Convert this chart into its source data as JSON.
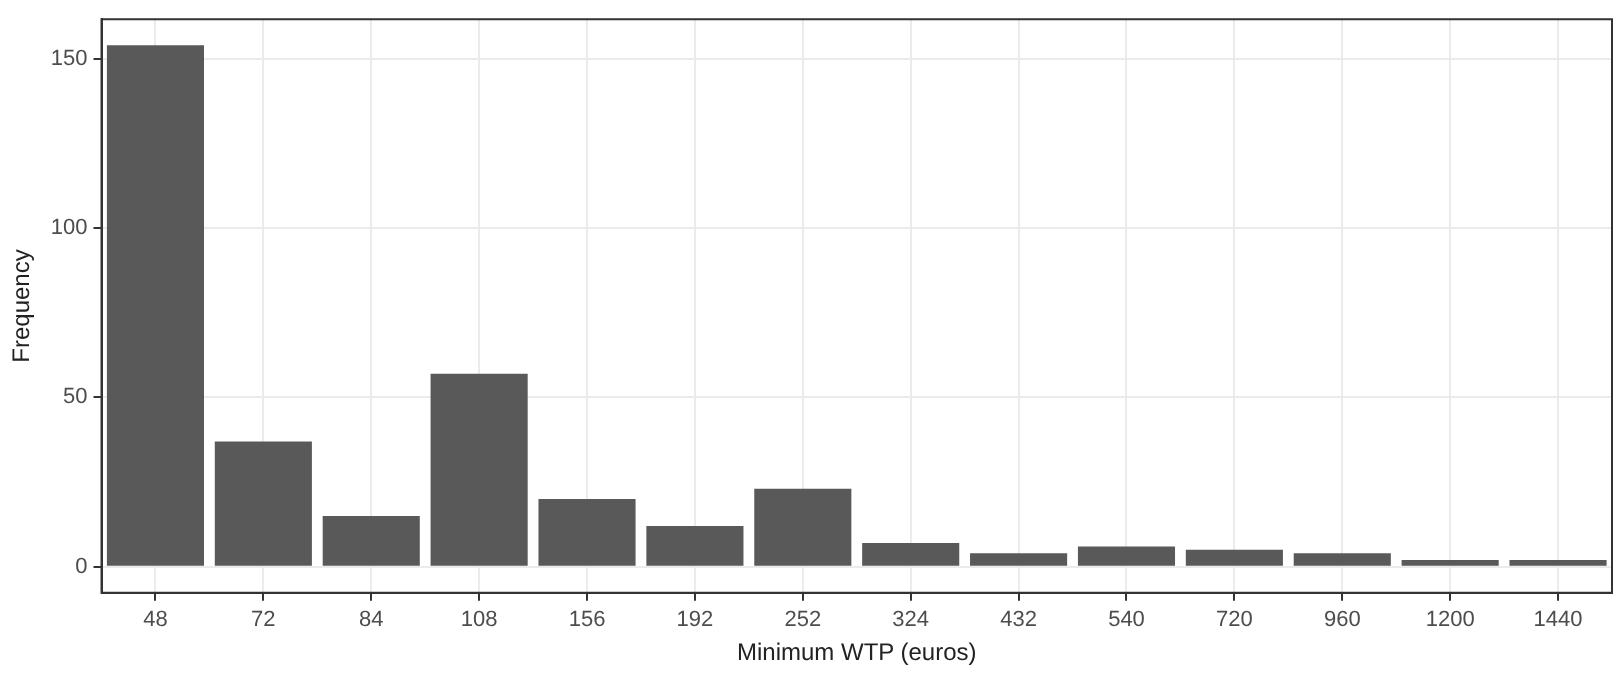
{
  "chart_data": {
    "type": "bar",
    "xlabel": "Minimum WTP (euros)",
    "ylabel": "Frequency",
    "categories": [
      "48",
      "72",
      "84",
      "108",
      "156",
      "192",
      "252",
      "324",
      "432",
      "540",
      "720",
      "960",
      "1200",
      "1440"
    ],
    "values": [
      154,
      37,
      15,
      57,
      20,
      12,
      23,
      7,
      4,
      6,
      5,
      4,
      2,
      2
    ],
    "color": "#595959",
    "ylim": [
      -7.7,
      161.7
    ],
    "yticks": [
      0,
      50,
      100,
      150
    ],
    "grid": true,
    "legend": false
  }
}
